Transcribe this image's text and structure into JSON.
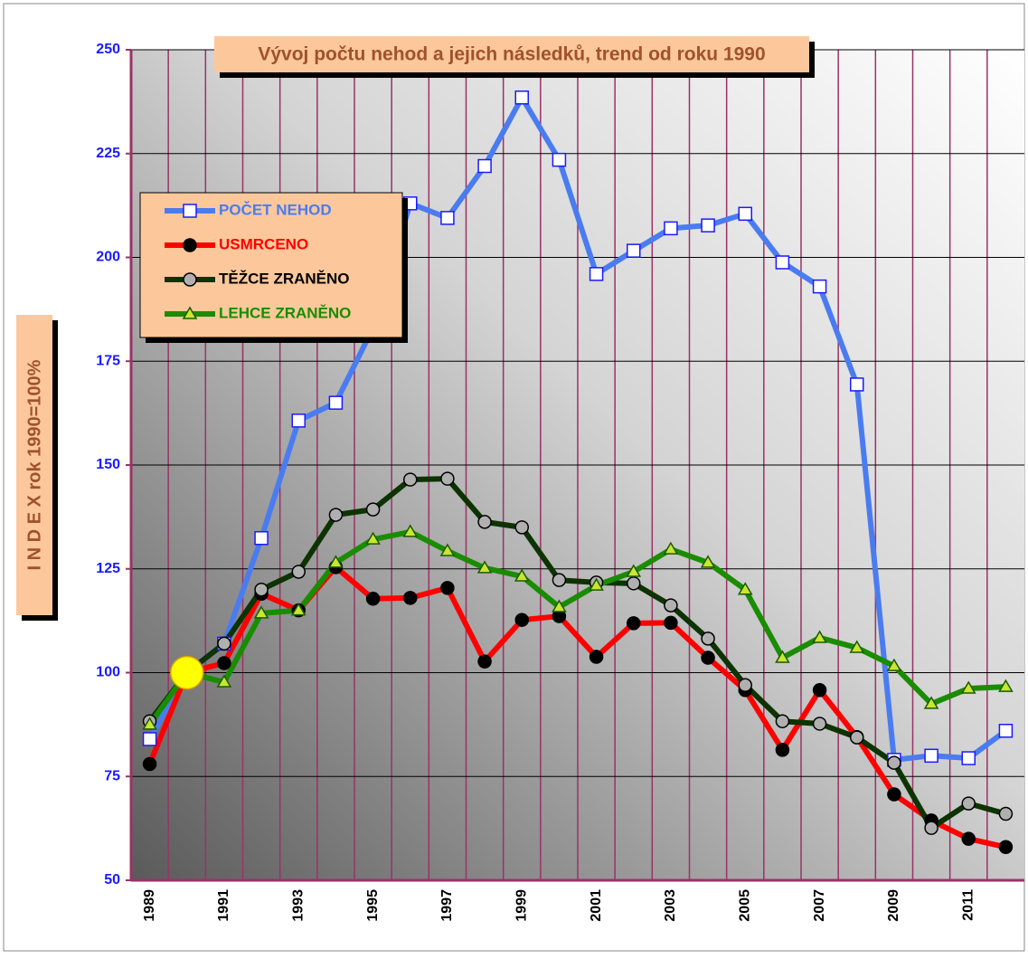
{
  "chart_data": {
    "type": "line",
    "title": "Vývoj počtu nehod a jejich následků, trend od roku 1990",
    "y_label": "I N D E X  rok 1990=100%",
    "categories": [
      "1989",
      null,
      "1991",
      null,
      "1993",
      null,
      "1995",
      null,
      "1997",
      null,
      "1999",
      null,
      "2001",
      null,
      "2003",
      null,
      "2005",
      null,
      "2007",
      null,
      "2009",
      null,
      "2011",
      null
    ],
    "ylim": [
      50,
      250
    ],
    "yticks": [
      50,
      75,
      100,
      125,
      150,
      175,
      200,
      225,
      250
    ],
    "grid": true,
    "legend": "upper left",
    "series": [
      {
        "name": "POČET NEHOD",
        "color": "#4a7cf0",
        "marker": "square",
        "marker_color": "#ffffff",
        "values": [
          84,
          100,
          107,
          132.4,
          160.7,
          165,
          183,
          213,
          209.5,
          222,
          238.5,
          223.5,
          196,
          201.6,
          207,
          207.7,
          210.5,
          198.8,
          193,
          169.4,
          79,
          80,
          79.4,
          86
        ]
      },
      {
        "name": "USMRCENO",
        "color": "#ff0000",
        "marker": "circle",
        "marker_color": "#000000",
        "values": [
          78,
          100,
          102.3,
          119,
          115,
          125.4,
          117.8,
          118,
          120.4,
          102.7,
          112.7,
          113.6,
          103.8,
          111.9,
          112,
          103.6,
          95.8,
          81.4,
          95.8,
          84.5,
          70.7,
          64.4,
          60,
          58
        ]
      },
      {
        "name": "TĚŽCE ZRANĚNO",
        "color": "#0d3300",
        "marker": "circle",
        "marker_color": "#b0b0b0",
        "values": [
          88.3,
          100,
          107,
          120,
          124.3,
          138,
          139.3,
          146.5,
          146.7,
          136.3,
          135,
          122.3,
          121.7,
          121.5,
          116.2,
          108.2,
          97,
          88.3,
          87.7,
          84.4,
          78.3,
          62.6,
          68.5,
          66
        ]
      },
      {
        "name": "LEHCE ZRANĚNO",
        "color": "#1a8c00",
        "marker": "triangle",
        "marker_color": "#c8e632",
        "values": [
          87.5,
          100,
          97.7,
          114.3,
          115,
          126.5,
          132.1,
          133.9,
          129.3,
          125.2,
          123.2,
          115.8,
          121,
          124.3,
          129.7,
          126.5,
          120,
          103.6,
          108.4,
          106,
          101.6,
          92.5,
          96.2,
          96.6
        ]
      }
    ]
  }
}
